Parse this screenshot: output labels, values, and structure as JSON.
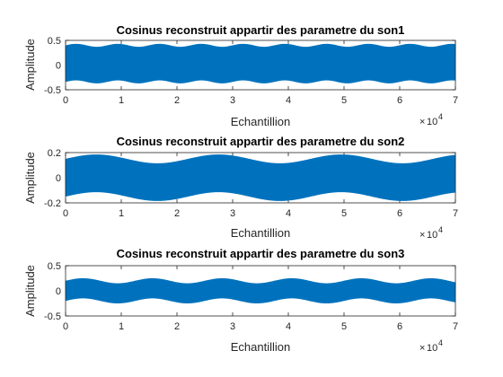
{
  "chart_data": [
    {
      "type": "line",
      "title": "Cosinus reconstruit appartir des parametre du son1",
      "xlabel": "Echantillion",
      "ylabel": "Amplitude",
      "xlim": [
        0,
        70000
      ],
      "ylim": [
        -0.5,
        0.5
      ],
      "xticks": [
        0,
        1,
        2,
        3,
        4,
        5,
        6,
        7
      ],
      "yticks": [
        "-0.5",
        "0",
        "0.5"
      ],
      "x_exponent": "10",
      "x_exponent_power": "4",
      "envelope": {
        "center": 0.03,
        "amplitude": 0.37,
        "mod": 0.03,
        "mod_period": 7500
      },
      "color": "#0072bd"
    },
    {
      "type": "line",
      "title": "Cosinus reconstruit appartir des parametre du son2",
      "xlabel": "Echantillion",
      "ylabel": "Amplitude",
      "xlim": [
        0,
        70000
      ],
      "ylim": [
        -0.2,
        0.2
      ],
      "xticks": [
        0,
        1,
        2,
        3,
        4,
        5,
        6,
        7
      ],
      "yticks": [
        "-0.2",
        "0",
        "0.2"
      ],
      "x_exponent": "10",
      "x_exponent_power": "4",
      "envelope": {
        "center": 0.0,
        "amplitude": 0.15,
        "mod": 0.035,
        "mod_period": 22000
      },
      "color": "#0072bd"
    },
    {
      "type": "line",
      "title": "Cosinus reconstruit appartir des parametre du son3",
      "xlabel": "Echantillion",
      "ylabel": "Amplitude",
      "xlim": [
        0,
        70000
      ],
      "ylim": [
        -0.5,
        0.5
      ],
      "xticks": [
        0,
        1,
        2,
        3,
        4,
        5,
        6,
        7
      ],
      "yticks": [
        "-0.5",
        "0",
        "0.5"
      ],
      "x_exponent": "10",
      "x_exponent_power": "4",
      "envelope": {
        "center": 0.0,
        "amplitude": 0.2,
        "mod": 0.05,
        "mod_period": 12500
      },
      "color": "#0072bd"
    }
  ]
}
